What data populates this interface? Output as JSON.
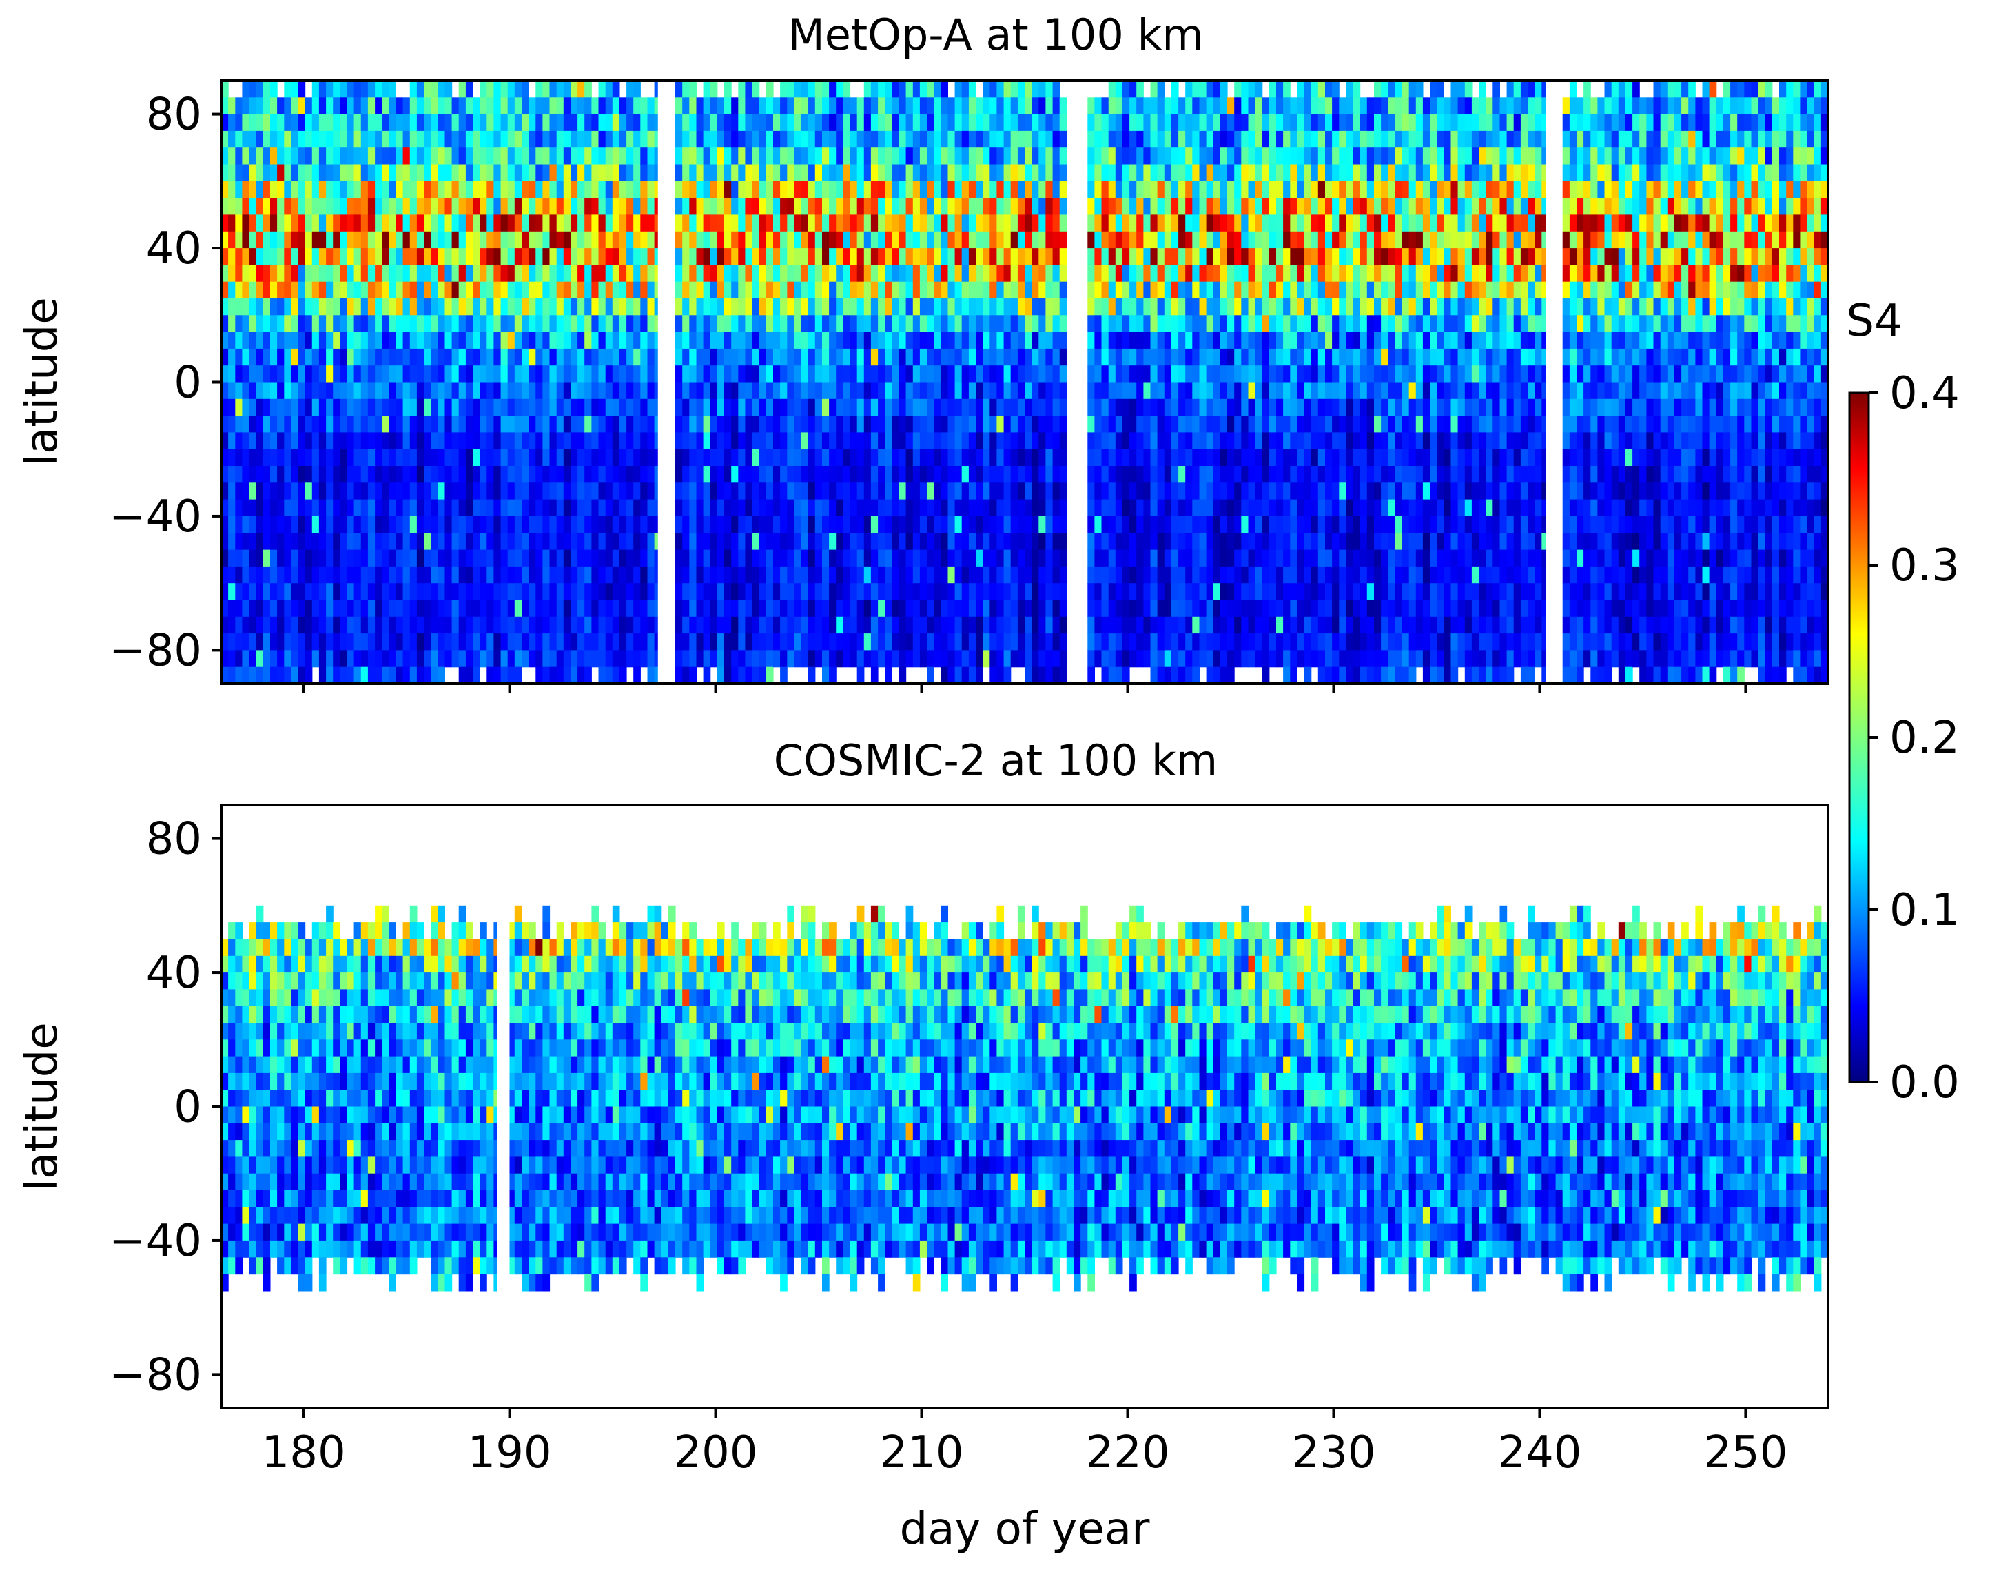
{
  "colors": {
    "gap": "#ffffff",
    "frame": "#000000"
  },
  "chart_data": [
    {
      "type": "heatmap",
      "title": "MetOp-A at 100 km",
      "xlabel": "",
      "ylabel": "latitude",
      "xlim": [
        176,
        254
      ],
      "ylim": [
        -90,
        90
      ],
      "yticks": [
        80,
        40,
        0,
        -40,
        -80
      ],
      "ytick_labels": [
        "80",
        "40",
        "0",
        "−40",
        "−80"
      ],
      "xticks": [
        180,
        190,
        200,
        210,
        220,
        230,
        240,
        250
      ],
      "xtick_labels_visible": false,
      "colorbar_shared": true,
      "data_lat_range": [
        -90,
        90
      ],
      "missing_day_ranges": [
        [
          197.2,
          198.0
        ],
        [
          217.2,
          218.0
        ],
        [
          240.3,
          241.0
        ]
      ],
      "latitude_profile": {
        "lat": [
          85,
          75,
          65,
          55,
          45,
          35,
          25,
          15,
          5,
          -5,
          -15,
          -25,
          -35,
          -45,
          -55,
          -65,
          -75,
          -85
        ],
        "mean_s4": [
          0.13,
          0.12,
          0.15,
          0.23,
          0.27,
          0.26,
          0.2,
          0.11,
          0.09,
          0.08,
          0.06,
          0.05,
          0.05,
          0.05,
          0.05,
          0.05,
          0.05,
          0.06
        ]
      }
    },
    {
      "type": "heatmap",
      "title": "COSMIC-2 at 100 km",
      "xlabel": "day of year",
      "ylabel": "latitude",
      "xlim": [
        176,
        254
      ],
      "ylim": [
        -90,
        90
      ],
      "yticks": [
        80,
        40,
        0,
        -40,
        -80
      ],
      "ytick_labels": [
        "80",
        "40",
        "0",
        "−40",
        "−80"
      ],
      "xticks": [
        180,
        190,
        200,
        210,
        220,
        230,
        240,
        250
      ],
      "xtick_labels": [
        "180",
        "190",
        "200",
        "210",
        "220",
        "230",
        "240",
        "250"
      ],
      "colorbar_shared": true,
      "data_lat_range": [
        -50,
        55
      ],
      "missing_day_ranges": [
        [
          189.4,
          190.0
        ]
      ],
      "latitude_profile": {
        "lat": [
          52,
          47,
          42,
          37,
          32,
          27,
          22,
          17,
          12,
          7,
          2,
          -3,
          -8,
          -13,
          -18,
          -23,
          -28,
          -33,
          -38,
          -43,
          -48
        ],
        "mean_s4": [
          0.19,
          0.2,
          0.16,
          0.15,
          0.14,
          0.13,
          0.12,
          0.12,
          0.11,
          0.11,
          0.11,
          0.1,
          0.1,
          0.09,
          0.09,
          0.09,
          0.09,
          0.09,
          0.09,
          0.1,
          0.12
        ]
      }
    }
  ],
  "colorbar": {
    "label": "S4",
    "range": [
      0.0,
      0.4
    ],
    "ticks": [
      0.0,
      0.1,
      0.2,
      0.3,
      0.4
    ],
    "tick_labels": [
      "0.0",
      "0.1",
      "0.2",
      "0.3",
      "0.4"
    ],
    "colormap": "jet"
  }
}
